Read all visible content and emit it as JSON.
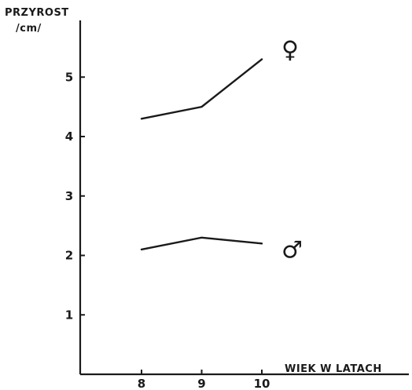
{
  "chart_data": {
    "type": "line",
    "ylabel_line1": "PRZYROST",
    "ylabel_line2": "/cm/",
    "xlabel": "WIEK W LATACH",
    "x": [
      8,
      9,
      10
    ],
    "x_tick_labels": [
      "8",
      "9",
      "10"
    ],
    "y_ticks": [
      1,
      2,
      3,
      4,
      5
    ],
    "y_tick_labels": [
      "1",
      "2",
      "3",
      "4",
      "5"
    ],
    "ylim": [
      0,
      5.8
    ],
    "xlim": [
      7,
      10.5
    ],
    "series": [
      {
        "name": "♀",
        "values": [
          4.3,
          4.5,
          5.3
        ],
        "color": "#1a1a1a"
      },
      {
        "name": "♂",
        "values": [
          2.1,
          2.3,
          2.2
        ],
        "color": "#1a1a1a"
      }
    ],
    "grid": false,
    "legend": "none"
  }
}
